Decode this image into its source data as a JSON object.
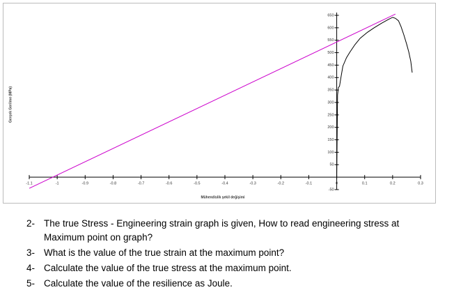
{
  "chart_data": {
    "type": "line",
    "x_label": "Mühendislik şekil değişimi",
    "y_label": "Gerçek Gerilme (MPa)",
    "xlim": [
      -1.1,
      0.3
    ],
    "ylim": [
      -50,
      650
    ],
    "xticks": [
      -1.1,
      -1,
      -0.9,
      -0.8,
      -0.7,
      -0.6,
      -0.5,
      -0.4,
      -0.3,
      -0.2,
      -0.1,
      0,
      0.1,
      0.2,
      0.3
    ],
    "yticks": [
      -50,
      50,
      100,
      150,
      200,
      250,
      300,
      350,
      400,
      450,
      500,
      550,
      600,
      650
    ],
    "series": [
      {
        "color": "#cc00cc",
        "x": [
          -1.1,
          0.21
        ],
        "values": [
          -45,
          655
        ]
      },
      {
        "color": "#000000",
        "x": [
          0,
          0.003,
          0.006,
          0.01,
          0.015,
          0.022,
          0.035,
          0.047,
          0.065,
          0.084,
          0.11,
          0.134,
          0.16,
          0.184,
          0.2,
          0.21,
          0.221,
          0.23,
          0.24,
          0.25,
          0.258,
          0.265,
          0.27
        ],
        "values": [
          0,
          330,
          360,
          365,
          400,
          446,
          480,
          502,
          532,
          558,
          582,
          600,
          618,
          633,
          642,
          638,
          628,
          605,
          572,
          535,
          502,
          465,
          420
        ]
      }
    ]
  },
  "document": {
    "questions": [
      {
        "number": "2-",
        "text": "The true Stress - Engineering strain graph is given, How to read engineering stress at Maximum point on graph?"
      },
      {
        "number": "3-",
        "text": "What is the value of the true strain at the maximum point?"
      },
      {
        "number": "4-",
        "text": "Calculate the value of the true stress at the maximum point."
      },
      {
        "number": "5-",
        "text": "Calculate the value of the resilience as Joule."
      }
    ]
  }
}
